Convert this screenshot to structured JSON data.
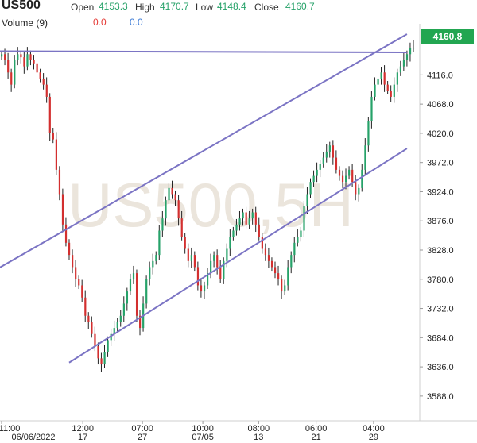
{
  "header": {
    "symbol": "US500",
    "open_label": "Open",
    "open_value": "4153.3",
    "high_label": "High",
    "high_value": "4170.7",
    "low_label": "Low",
    "low_value": "4148.4",
    "close_label": "Close",
    "close_value": "4160.7",
    "volume_label": "Volume (9)",
    "volume_value_1": "0.0",
    "volume_value_2": "0.0"
  },
  "watermark": "US500,5H",
  "colors": {
    "up": "#26a269",
    "down": "#d32f2f",
    "trendline": "#7b74c4",
    "price_tag": "#22a651",
    "watermark": "#e7e1d8"
  },
  "price_tag": "4160.8",
  "chart_data": {
    "type": "candlestick",
    "ylim": [
      3550,
      4200
    ],
    "yticks": [
      "4116.0",
      "4068.0",
      "4020.0",
      "3972.0",
      "3924.0",
      "3876.0",
      "3828.0",
      "3780.0",
      "3732.0",
      "3684.0",
      "3636.0",
      "3588.0"
    ],
    "xticks": [
      {
        "top": "11:00",
        "bottom": "06/06/2022"
      },
      {
        "top": "12:00",
        "bottom": "17"
      },
      {
        "top": "07:00",
        "bottom": "27"
      },
      {
        "top": "10:00",
        "bottom": "07/05"
      },
      {
        "top": "08:00",
        "bottom": "13"
      },
      {
        "top": "06:00",
        "bottom": "21"
      },
      {
        "top": "04:00",
        "bottom": "29"
      }
    ],
    "closes": [
      4150,
      4140,
      4120,
      4100,
      4140,
      4150,
      4145,
      4130,
      4150,
      4140,
      4135,
      4120,
      4110,
      4100,
      4080,
      4020,
      4010,
      3960,
      3920,
      3870,
      3840,
      3820,
      3800,
      3780,
      3770,
      3750,
      3720,
      3710,
      3690,
      3670,
      3650,
      3640,
      3660,
      3680,
      3690,
      3700,
      3710,
      3720,
      3740,
      3760,
      3780,
      3790,
      3720,
      3700,
      3740,
      3780,
      3800,
      3810,
      3820,
      3860,
      3880,
      3910,
      3930,
      3920,
      3910,
      3880,
      3850,
      3830,
      3810,
      3820,
      3800,
      3770,
      3760,
      3770,
      3790,
      3810,
      3820,
      3800,
      3780,
      3810,
      3830,
      3850,
      3860,
      3870,
      3880,
      3890,
      3870,
      3880,
      3890,
      3870,
      3850,
      3830,
      3820,
      3810,
      3800,
      3790,
      3780,
      3760,
      3770,
      3800,
      3820,
      3840,
      3850,
      3860,
      3900,
      3920,
      3940,
      3950,
      3960,
      3970,
      3980,
      3990,
      4000,
      3980,
      3960,
      3950,
      3940,
      3950,
      3960,
      3940,
      3920,
      3930,
      3960,
      4000,
      4040,
      4080,
      4100,
      4110,
      4120,
      4100,
      4090,
      4080,
      4100,
      4120,
      4130,
      4140,
      4150,
      4160,
      4160.7
    ],
    "trendlines": [
      {
        "role": "resistance",
        "x1_idx": -2,
        "y1": 3795,
        "x2_idx": 126,
        "y2": 4183
      },
      {
        "role": "support",
        "x1_idx": 21,
        "y1": 3643,
        "x2_idx": 126,
        "y2": 3995
      },
      {
        "role": "level",
        "x1_idx": -2,
        "y1": 4155,
        "x2_idx": 126,
        "y2": 4153
      }
    ]
  }
}
